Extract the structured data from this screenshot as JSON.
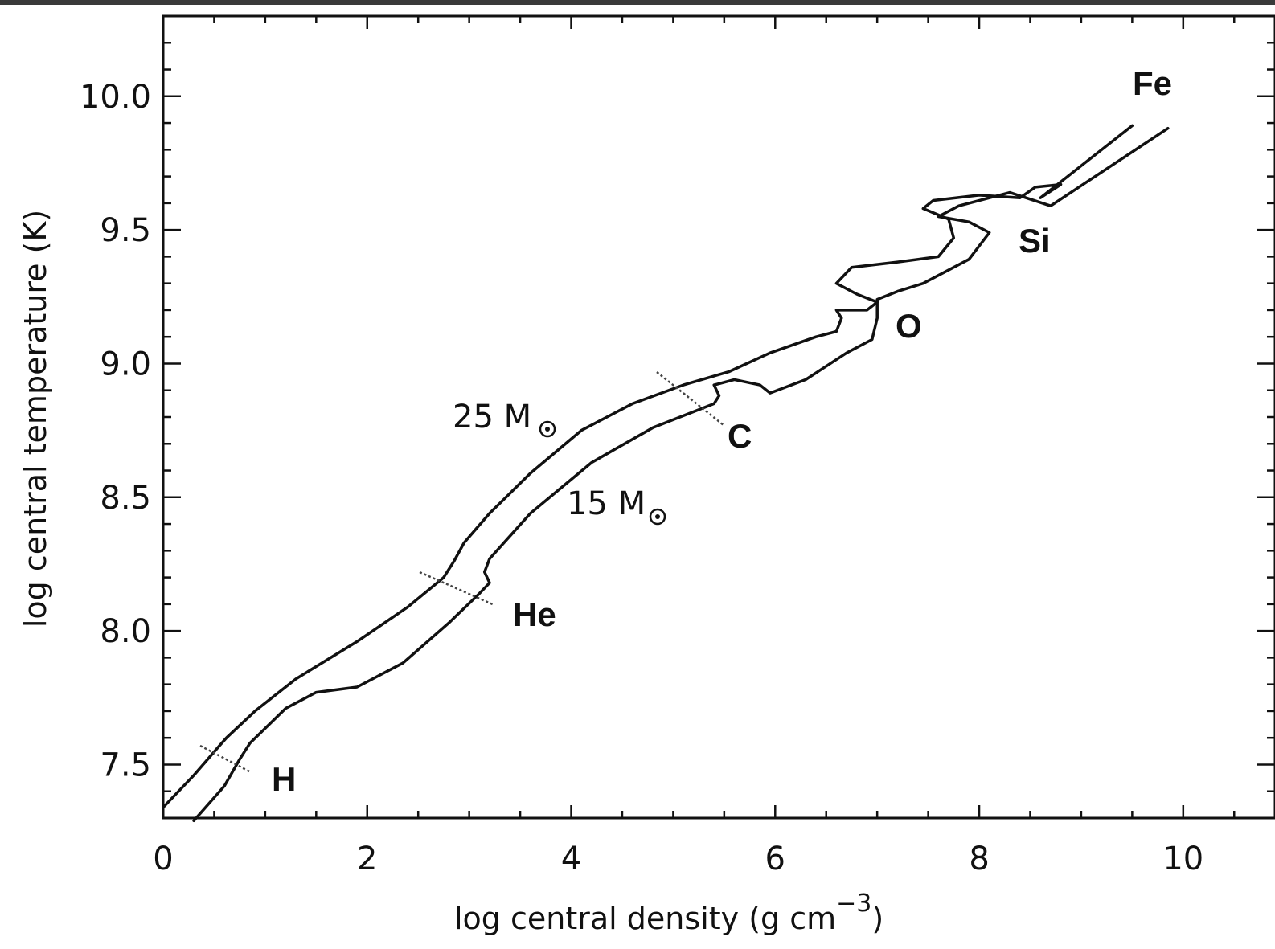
{
  "chart_data": {
    "type": "line",
    "title": "",
    "xlabel": "log central density (g cm",
    "xlabel_superscript": "−3",
    "xlabel_suffix": ")",
    "ylabel": "log central temperature (K)",
    "xlim": [
      0,
      10.9
    ],
    "ylim": [
      7.3,
      10.3
    ],
    "x_ticks": [
      "0",
      "2",
      "4",
      "6",
      "8",
      "10"
    ],
    "y_ticks": [
      "7.5",
      "8.0",
      "8.5",
      "9.0",
      "9.5",
      "10.0"
    ],
    "grid": false,
    "series": [
      {
        "name": "25 M",
        "label_number": "25 M",
        "points": [
          [
            0.0,
            7.34
          ],
          [
            0.3,
            7.46
          ],
          [
            0.55,
            7.57
          ],
          [
            0.62,
            7.6
          ],
          [
            0.9,
            7.7
          ],
          [
            1.3,
            7.82
          ],
          [
            1.9,
            7.96
          ],
          [
            2.4,
            8.09
          ],
          [
            2.75,
            8.2
          ],
          [
            2.85,
            8.26
          ],
          [
            2.95,
            8.33
          ],
          [
            3.2,
            8.44
          ],
          [
            3.6,
            8.59
          ],
          [
            4.1,
            8.75
          ],
          [
            4.6,
            8.85
          ],
          [
            5.1,
            8.92
          ],
          [
            5.55,
            8.97
          ],
          [
            5.95,
            9.04
          ],
          [
            6.4,
            9.1
          ],
          [
            6.6,
            9.12
          ],
          [
            6.65,
            9.17
          ],
          [
            6.6,
            9.2
          ],
          [
            6.9,
            9.2
          ],
          [
            7.0,
            9.23
          ],
          [
            6.8,
            9.26
          ],
          [
            6.6,
            9.3
          ],
          [
            6.75,
            9.36
          ],
          [
            7.2,
            9.38
          ],
          [
            7.6,
            9.4
          ],
          [
            7.75,
            9.47
          ],
          [
            7.7,
            9.54
          ],
          [
            7.45,
            9.58
          ],
          [
            7.55,
            9.61
          ],
          [
            8.0,
            9.63
          ],
          [
            8.4,
            9.62
          ],
          [
            8.55,
            9.66
          ],
          [
            8.8,
            9.67
          ],
          [
            8.6,
            9.62
          ],
          [
            9.5,
            9.89
          ]
        ]
      },
      {
        "name": "15 M",
        "label_number": "15 M",
        "points": [
          [
            0.3,
            7.29
          ],
          [
            0.6,
            7.42
          ],
          [
            0.75,
            7.52
          ],
          [
            0.85,
            7.58
          ],
          [
            1.2,
            7.71
          ],
          [
            1.5,
            7.77
          ],
          [
            1.9,
            7.79
          ],
          [
            2.35,
            7.88
          ],
          [
            2.8,
            8.03
          ],
          [
            3.1,
            8.14
          ],
          [
            3.2,
            8.18
          ],
          [
            3.15,
            8.22
          ],
          [
            3.2,
            8.27
          ],
          [
            3.6,
            8.44
          ],
          [
            4.2,
            8.63
          ],
          [
            4.8,
            8.76
          ],
          [
            5.4,
            8.85
          ],
          [
            5.45,
            8.88
          ],
          [
            5.4,
            8.92
          ],
          [
            5.6,
            8.94
          ],
          [
            5.85,
            8.92
          ],
          [
            5.95,
            8.89
          ],
          [
            6.3,
            8.94
          ],
          [
            6.7,
            9.04
          ],
          [
            6.95,
            9.09
          ],
          [
            7.0,
            9.17
          ],
          [
            7.0,
            9.24
          ],
          [
            7.2,
            9.27
          ],
          [
            7.45,
            9.3
          ],
          [
            7.9,
            9.39
          ],
          [
            8.1,
            9.49
          ],
          [
            7.9,
            9.53
          ],
          [
            7.6,
            9.55
          ],
          [
            7.8,
            9.59
          ],
          [
            8.3,
            9.64
          ],
          [
            8.7,
            9.59
          ],
          [
            9.85,
            9.88
          ]
        ]
      }
    ],
    "burning_stage_labels": [
      "H",
      "He",
      "C",
      "O",
      "Si",
      "Fe"
    ],
    "colors": {
      "line": "#111111",
      "boundary": "#444444",
      "background": "#ffffff",
      "top_border": "#3a3a3a"
    }
  }
}
